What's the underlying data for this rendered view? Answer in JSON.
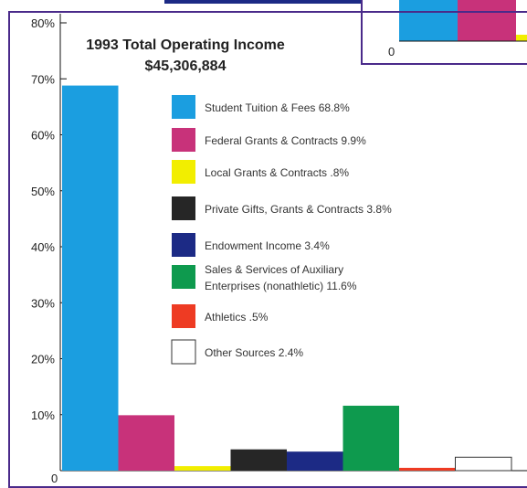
{
  "chart_data": {
    "type": "bar",
    "title": "1993 Total Operating Income",
    "subtitle": "$45,306,884",
    "ylim": [
      0,
      80
    ],
    "yticks": [
      "0",
      "10%",
      "20%",
      "30%",
      "40%",
      "50%",
      "60%",
      "70%",
      "80%"
    ],
    "grid": false,
    "legend_position": "top-center",
    "categories": [
      "Student Tuition & Fees 68.8%",
      "Federal Grants & Contracts 9.9%",
      "Local Grants & Contracts .8%",
      "Private Gifts, Grants & Contracts 3.8%",
      "Endowment Income 3.4%",
      "Sales & Services of Auxiliary Enterprises (nonathletic) 11.6%",
      "Athletics .5%",
      "Other Sources 2.4%"
    ],
    "legend": [
      {
        "line1": "Student Tuition & Fees 68.8%",
        "line2": ""
      },
      {
        "line1": "Federal Grants & Contracts 9.9%",
        "line2": ""
      },
      {
        "line1": "Local Grants & Contracts .8%",
        "line2": ""
      },
      {
        "line1": "Private Gifts, Grants & Contracts 3.8%",
        "line2": ""
      },
      {
        "line1": "Endowment Income 3.4%",
        "line2": ""
      },
      {
        "line1": "Sales & Services of Auxiliary",
        "line2": "Enterprises (nonathletic) 11.6%"
      },
      {
        "line1": "Athletics .5%",
        "line2": ""
      },
      {
        "line1": "Other Sources 2.4%",
        "line2": ""
      }
    ],
    "values": [
      68.8,
      9.9,
      0.8,
      3.8,
      3.4,
      11.6,
      0.5,
      2.4
    ],
    "colors": [
      "#1b9ee0",
      "#c8327a",
      "#f2ee00",
      "#262626",
      "#1c2a85",
      "#0e9a4e",
      "#ee3b23",
      "#ffffff"
    ]
  },
  "inset": {
    "zero_label": "0",
    "colors": [
      "#1b9ee0",
      "#c8327a",
      "#f2ee00"
    ]
  }
}
